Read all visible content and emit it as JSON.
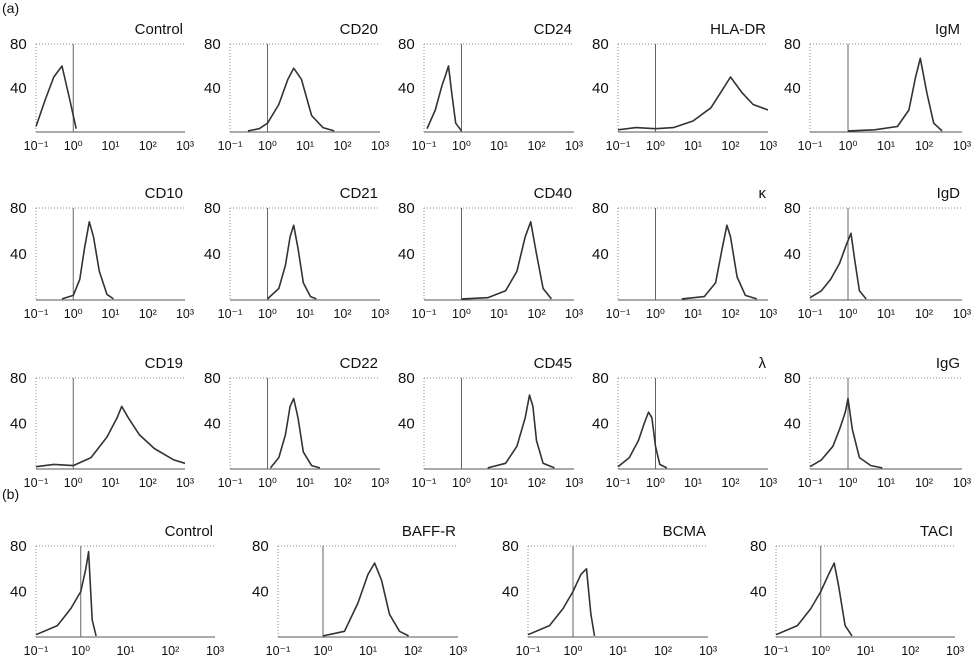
{
  "figure": {
    "label_a": "(a)",
    "label_b": "(b)"
  },
  "chart_data": [
    {
      "type": "line",
      "section": "a",
      "title": "Control",
      "ylim": [
        0,
        80
      ],
      "yticks": [
        40,
        80
      ],
      "xlim": [
        -1,
        3
      ],
      "xscale": "log",
      "xticks": [
        "10⁻¹",
        "10⁰",
        "10¹",
        "10²",
        "10³"
      ],
      "series": [
        {
          "x": [
            0.1,
            0.18,
            0.3,
            0.5,
            0.8,
            1.2
          ],
          "y": [
            5,
            30,
            50,
            60,
            30,
            3
          ]
        }
      ]
    },
    {
      "type": "line",
      "section": "a",
      "title": "CD20",
      "ylim": [
        0,
        80
      ],
      "yticks": [
        40,
        80
      ],
      "xlim": [
        -1,
        3
      ],
      "xscale": "log",
      "xticks": [
        "10⁻¹",
        "10⁰",
        "10¹",
        "10²",
        "10³"
      ],
      "series": [
        {
          "x": [
            0.3,
            0.6,
            1,
            2,
            3.5,
            5,
            8,
            15,
            30,
            60
          ],
          "y": [
            1,
            3,
            8,
            25,
            48,
            58,
            48,
            15,
            4,
            1
          ]
        }
      ]
    },
    {
      "type": "line",
      "section": "a",
      "title": "CD24",
      "ylim": [
        0,
        80
      ],
      "yticks": [
        40,
        80
      ],
      "xlim": [
        -1,
        3
      ],
      "xscale": "log",
      "xticks": [
        "10⁻¹",
        "10⁰",
        "10¹",
        "10²",
        "10³"
      ],
      "series": [
        {
          "x": [
            0.12,
            0.2,
            0.3,
            0.38,
            0.45,
            0.55,
            0.7,
            1
          ],
          "y": [
            3,
            20,
            42,
            52,
            60,
            35,
            8,
            1
          ]
        }
      ]
    },
    {
      "type": "line",
      "section": "a",
      "title": "HLA-DR",
      "ylim": [
        0,
        80
      ],
      "yticks": [
        40,
        80
      ],
      "xlim": [
        -1,
        3
      ],
      "xscale": "log",
      "xticks": [
        "10⁻¹",
        "10⁰",
        "10¹",
        "10²",
        "10³"
      ],
      "series": [
        {
          "x": [
            0.1,
            0.3,
            1,
            3,
            10,
            30,
            60,
            100,
            200,
            400,
            1000
          ],
          "y": [
            2,
            4,
            3,
            4,
            10,
            22,
            38,
            50,
            36,
            25,
            20
          ]
        }
      ]
    },
    {
      "type": "line",
      "section": "a",
      "title": "IgM",
      "ylim": [
        0,
        80
      ],
      "yticks": [
        40,
        80
      ],
      "xlim": [
        -1,
        3
      ],
      "xscale": "log",
      "xticks": [
        "10⁻¹",
        "10⁰",
        "10¹",
        "10²",
        "10³"
      ],
      "series": [
        {
          "x": [
            1,
            5,
            20,
            40,
            60,
            80,
            120,
            180,
            300
          ],
          "y": [
            1,
            2,
            5,
            20,
            50,
            67,
            35,
            8,
            1
          ]
        }
      ]
    },
    {
      "type": "line",
      "section": "a",
      "title": "CD10",
      "ylim": [
        0,
        80
      ],
      "yticks": [
        40,
        80
      ],
      "xlim": [
        -1,
        3
      ],
      "xscale": "log",
      "xticks": [
        "10⁻¹",
        "10⁰",
        "10¹",
        "10²",
        "10³"
      ],
      "series": [
        {
          "x": [
            0.5,
            1,
            1.5,
            2,
            2.7,
            3.5,
            5,
            8,
            12
          ],
          "y": [
            1,
            4,
            18,
            45,
            68,
            55,
            25,
            5,
            1
          ]
        }
      ]
    },
    {
      "type": "line",
      "section": "a",
      "title": "CD21",
      "ylim": [
        0,
        80
      ],
      "yticks": [
        40,
        80
      ],
      "xlim": [
        -1,
        3
      ],
      "xscale": "log",
      "xticks": [
        "10⁻¹",
        "10⁰",
        "10¹",
        "10²",
        "10³"
      ],
      "series": [
        {
          "x": [
            1,
            2,
            3,
            4,
            5,
            6.5,
            9,
            14,
            20
          ],
          "y": [
            1,
            10,
            30,
            55,
            65,
            45,
            15,
            3,
            1
          ]
        }
      ]
    },
    {
      "type": "line",
      "section": "a",
      "title": "CD40",
      "ylim": [
        0,
        80
      ],
      "yticks": [
        40,
        80
      ],
      "xlim": [
        -1,
        3
      ],
      "xscale": "log",
      "xticks": [
        "10⁻¹",
        "10⁰",
        "10¹",
        "10²",
        "10³"
      ],
      "series": [
        {
          "x": [
            1,
            5,
            15,
            30,
            50,
            70,
            100,
            150,
            250
          ],
          "y": [
            1,
            2,
            8,
            25,
            55,
            68,
            40,
            10,
            1
          ]
        }
      ]
    },
    {
      "type": "line",
      "section": "a",
      "title": "κ",
      "ylim": [
        0,
        80
      ],
      "yticks": [
        40,
        80
      ],
      "xlim": [
        -1,
        3
      ],
      "xscale": "log",
      "xticks": [
        "10⁻¹",
        "10⁰",
        "10¹",
        "10²",
        "10³"
      ],
      "series": [
        {
          "x": [
            5,
            20,
            40,
            60,
            80,
            100,
            150,
            250,
            500
          ],
          "y": [
            1,
            3,
            15,
            45,
            65,
            55,
            20,
            4,
            1
          ]
        }
      ]
    },
    {
      "type": "line",
      "section": "a",
      "title": "IgD",
      "ylim": [
        0,
        80
      ],
      "yticks": [
        40,
        80
      ],
      "xlim": [
        -1,
        3
      ],
      "xscale": "log",
      "xticks": [
        "10⁻¹",
        "10⁰",
        "10¹",
        "10²",
        "10³"
      ],
      "series": [
        {
          "x": [
            0.1,
            0.2,
            0.35,
            0.6,
            0.9,
            1.2,
            1.5,
            2,
            3
          ],
          "y": [
            2,
            8,
            18,
            32,
            48,
            58,
            35,
            8,
            1
          ]
        }
      ]
    },
    {
      "type": "line",
      "section": "a",
      "title": "CD19",
      "ylim": [
        0,
        80
      ],
      "yticks": [
        40,
        80
      ],
      "xlim": [
        -1,
        3
      ],
      "xscale": "log",
      "xticks": [
        "10⁻¹",
        "10⁰",
        "10¹",
        "10²",
        "10³"
      ],
      "series": [
        {
          "x": [
            0.1,
            0.3,
            1,
            3,
            8,
            15,
            20,
            30,
            60,
            150,
            500,
            1000
          ],
          "y": [
            2,
            4,
            3,
            10,
            28,
            45,
            55,
            45,
            30,
            18,
            8,
            5
          ]
        }
      ]
    },
    {
      "type": "line",
      "section": "a",
      "title": "CD22",
      "ylim": [
        0,
        80
      ],
      "yticks": [
        40,
        80
      ],
      "xlim": [
        -1,
        3
      ],
      "xscale": "log",
      "xticks": [
        "10⁻¹",
        "10⁰",
        "10¹",
        "10²",
        "10³"
      ],
      "series": [
        {
          "x": [
            1.2,
            2,
            3,
            4,
            5,
            6.5,
            9,
            15,
            25
          ],
          "y": [
            1,
            10,
            30,
            55,
            62,
            45,
            15,
            3,
            1
          ]
        }
      ]
    },
    {
      "type": "line",
      "section": "a",
      "title": "CD45",
      "ylim": [
        0,
        80
      ],
      "yticks": [
        40,
        80
      ],
      "xlim": [
        -1,
        3
      ],
      "xscale": "log",
      "xticks": [
        "10⁻¹",
        "10⁰",
        "10¹",
        "10²",
        "10³"
      ],
      "series": [
        {
          "x": [
            5,
            15,
            30,
            50,
            65,
            80,
            100,
            150,
            300
          ],
          "y": [
            1,
            5,
            20,
            45,
            65,
            55,
            25,
            5,
            1
          ]
        }
      ]
    },
    {
      "type": "line",
      "section": "a",
      "title": "λ",
      "ylim": [
        0,
        80
      ],
      "yticks": [
        40,
        80
      ],
      "xlim": [
        -1,
        3
      ],
      "xscale": "log",
      "xticks": [
        "10⁻¹",
        "10⁰",
        "10¹",
        "10²",
        "10³"
      ],
      "series": [
        {
          "x": [
            0.1,
            0.2,
            0.35,
            0.5,
            0.65,
            0.8,
            1,
            1.3,
            2
          ],
          "y": [
            2,
            10,
            25,
            40,
            50,
            45,
            20,
            4,
            1
          ]
        }
      ]
    },
    {
      "type": "line",
      "section": "a",
      "title": "IgG",
      "ylim": [
        0,
        80
      ],
      "yticks": [
        40,
        80
      ],
      "xlim": [
        -1,
        3
      ],
      "xscale": "log",
      "xticks": [
        "10⁻¹",
        "10⁰",
        "10¹",
        "10²",
        "10³"
      ],
      "series": [
        {
          "x": [
            0.1,
            0.2,
            0.4,
            0.6,
            0.85,
            1,
            1.3,
            2,
            4,
            8
          ],
          "y": [
            2,
            8,
            20,
            35,
            50,
            62,
            35,
            10,
            3,
            1
          ]
        }
      ]
    },
    {
      "type": "line",
      "section": "b",
      "title": "Control",
      "ylim": [
        0,
        80
      ],
      "yticks": [
        40,
        80
      ],
      "xlim": [
        -1,
        3
      ],
      "xscale": "log",
      "xticks": [
        "10⁻¹",
        "10⁰",
        "10¹",
        "10²",
        "10³"
      ],
      "series": [
        {
          "x": [
            0.1,
            0.3,
            0.6,
            1,
            1.3,
            1.5,
            1.8,
            2.2
          ],
          "y": [
            2,
            10,
            25,
            40,
            60,
            75,
            15,
            1
          ]
        }
      ]
    },
    {
      "type": "line",
      "section": "b",
      "title": "BAFF-R",
      "ylim": [
        0,
        80
      ],
      "yticks": [
        40,
        80
      ],
      "xlim": [
        -1,
        3
      ],
      "xscale": "log",
      "xticks": [
        "10⁻¹",
        "10⁰",
        "10¹",
        "10²",
        "10³"
      ],
      "series": [
        {
          "x": [
            1,
            3,
            6,
            10,
            14,
            20,
            30,
            50,
            80
          ],
          "y": [
            1,
            5,
            30,
            55,
            65,
            50,
            20,
            5,
            1
          ]
        }
      ]
    },
    {
      "type": "line",
      "section": "b",
      "title": "BCMA",
      "ylim": [
        0,
        80
      ],
      "yticks": [
        40,
        80
      ],
      "xlim": [
        -1,
        3
      ],
      "xscale": "log",
      "xticks": [
        "10⁻¹",
        "10⁰",
        "10¹",
        "10²",
        "10³"
      ],
      "series": [
        {
          "x": [
            0.1,
            0.3,
            0.6,
            1,
            1.5,
            2,
            2.5,
            3
          ],
          "y": [
            2,
            10,
            25,
            40,
            55,
            60,
            20,
            1
          ]
        }
      ]
    },
    {
      "type": "line",
      "section": "b",
      "title": "TACI",
      "ylim": [
        0,
        80
      ],
      "yticks": [
        40,
        80
      ],
      "xlim": [
        -1,
        3
      ],
      "xscale": "log",
      "xticks": [
        "10⁻¹",
        "10⁰",
        "10¹",
        "10²",
        "10³"
      ],
      "series": [
        {
          "x": [
            0.1,
            0.3,
            0.6,
            1,
            1.5,
            2,
            2.5,
            3.5,
            5
          ],
          "y": [
            2,
            10,
            25,
            40,
            55,
            65,
            45,
            10,
            1
          ]
        }
      ]
    }
  ]
}
